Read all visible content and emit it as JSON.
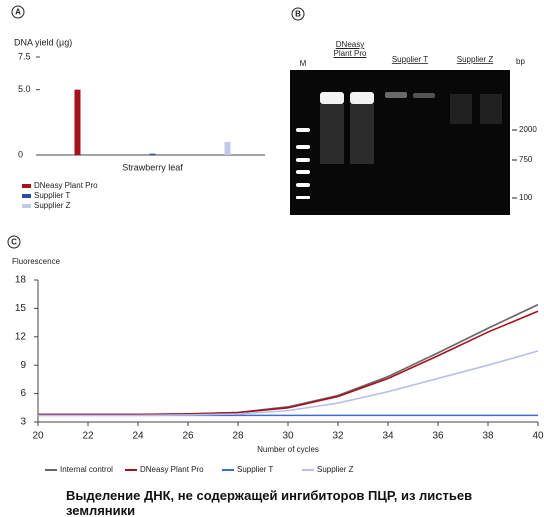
{
  "chart_data": [
    {
      "type": "bar",
      "panel_label": "A",
      "ylabel": "DNA yield (µg)",
      "categories": [
        "Strawberry leaf"
      ],
      "series": [
        {
          "name": "DNeasy Plant Pro",
          "color": "#a8101e",
          "values": [
            5.0
          ]
        },
        {
          "name": "Supplier T",
          "color": "#2b4f9e",
          "values": [
            0.1
          ]
        },
        {
          "name": "Supplier Z",
          "color": "#c3c9e8",
          "values": [
            1.0
          ]
        }
      ],
      "ylim": [
        0,
        7.5
      ],
      "yticks": [
        0,
        {
          "value": 5,
          "label": "5.0"
        },
        7.5
      ]
    },
    {
      "type": "line",
      "panel_label": "C",
      "ylabel": "Fluorescence",
      "xlabel": "Number of cycles",
      "x": [
        20,
        22,
        24,
        26,
        28,
        30,
        32,
        34,
        36,
        38,
        40
      ],
      "series": [
        {
          "name": "Internal control",
          "color": "#666666",
          "values": [
            3.8,
            3.8,
            3.8,
            3.85,
            4.0,
            4.6,
            5.8,
            7.8,
            10.3,
            12.9,
            15.4
          ]
        },
        {
          "name": "DNeasy Plant Pro",
          "color": "#a8101e",
          "values": [
            3.8,
            3.8,
            3.8,
            3.85,
            4.0,
            4.5,
            5.7,
            7.6,
            10.0,
            12.5,
            14.7
          ]
        },
        {
          "name": "Supplier T",
          "color": "#3a6fd0",
          "values": [
            3.7,
            3.7,
            3.7,
            3.7,
            3.7,
            3.7,
            3.7,
            3.7,
            3.7,
            3.7,
            3.7
          ]
        },
        {
          "name": "Supplier Z",
          "color": "#b8c0ea",
          "values": [
            3.7,
            3.7,
            3.7,
            3.75,
            3.85,
            4.2,
            5.0,
            6.2,
            7.6,
            9.0,
            10.5
          ]
        }
      ],
      "xlim": [
        20,
        40
      ],
      "xticks": [
        20,
        22,
        24,
        26,
        28,
        30,
        32,
        34,
        36,
        38,
        40
      ],
      "ylim": [
        3,
        18
      ],
      "yticks": [
        3,
        6,
        9,
        12,
        15,
        18
      ]
    }
  ],
  "gel": {
    "panel_label": "B",
    "marker_label": "M",
    "lane_headers": [
      "DNeasy Plant Pro",
      "Supplier T",
      "Supplier Z"
    ],
    "unit": "bp",
    "sizes": [
      2000,
      750,
      100
    ]
  },
  "caption": "Выделение ДНК, не содержащей ингибиторов ПЦР, из листьев земляники"
}
